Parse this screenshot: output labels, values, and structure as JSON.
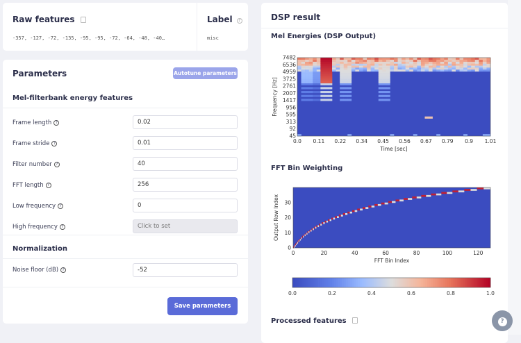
{
  "raw": {
    "title": "Raw features",
    "values": "-357, -127, -72, -135, -95, -95, -72, -64, -48, -40…",
    "label_title": "Label",
    "label_value": "misc"
  },
  "params": {
    "title": "Parameters",
    "autotune": "Autotune parameters",
    "section1": "Mel-filterbank energy features",
    "fields": [
      {
        "label": "Frame length",
        "value": "0.02"
      },
      {
        "label": "Frame stride",
        "value": "0.01"
      },
      {
        "label": "Filter number",
        "value": "40"
      },
      {
        "label": "FFT length",
        "value": "256"
      },
      {
        "label": "Low frequency",
        "value": "0"
      },
      {
        "label": "High frequency",
        "value": "Click to set",
        "disabled": true
      }
    ],
    "section2": "Normalization",
    "noise": {
      "label": "Noise floor (dB)",
      "value": "-52"
    },
    "save": "Save parameters"
  },
  "dsp": {
    "title": "DSP result",
    "mel_title": "Mel Energies (DSP Output)",
    "fft_title": "FFT Bin Weighting",
    "processed": "Processed features"
  },
  "colors": {
    "accent": "#5a6bd8",
    "accent_light": "#9ba5ea",
    "low": "#3b4cc0",
    "mid": "#dddddd",
    "high": "#b40426"
  },
  "chart_data": [
    {
      "type": "heatmap",
      "title": "Mel Energies (DSP Output)",
      "xlabel": "Time [sec]",
      "ylabel": "Frequency [Hz]",
      "xticks": [
        "0.0",
        "0.11",
        "0.22",
        "0.34",
        "0.45",
        "0.56",
        "0.67",
        "0.79",
        "0.9",
        "1.01"
      ],
      "yticks": [
        "7482",
        "6536",
        "4959",
        "3725",
        "2761",
        "2007",
        "1417",
        "956",
        "595",
        "313",
        "92",
        "45"
      ],
      "colormap": "coolwarm"
    },
    {
      "type": "heatmap",
      "title": "FFT Bin Weighting",
      "xlabel": "FFT Bin Index",
      "ylabel": "Output Row Index",
      "xticks": [
        "0",
        "20",
        "40",
        "60",
        "80",
        "100",
        "120"
      ],
      "yticks": [
        "0",
        "10",
        "20",
        "30"
      ],
      "xlim": [
        0,
        128
      ],
      "ylim": [
        0,
        40
      ],
      "colormap": "coolwarm",
      "colorbar": {
        "ticks": [
          "0.0",
          "0.2",
          "0.4",
          "0.6",
          "0.8",
          "1.0"
        ],
        "range": [
          0,
          1
        ]
      }
    }
  ],
  "help_icon": "question-circle-icon"
}
